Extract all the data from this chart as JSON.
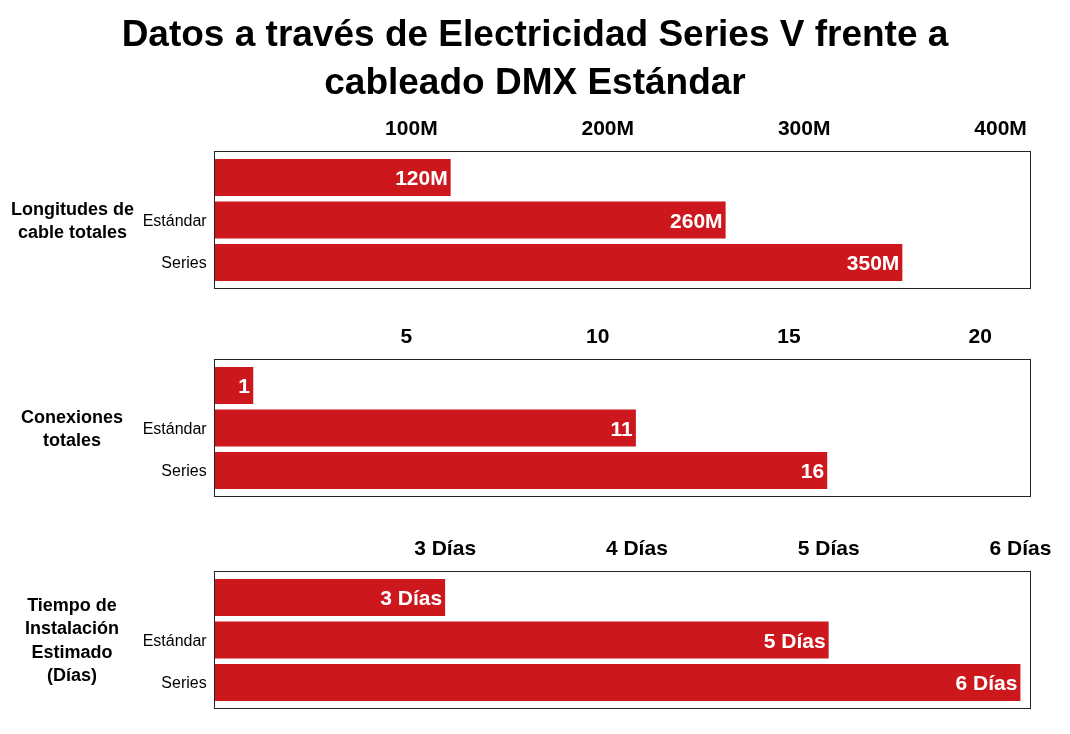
{
  "chart_data": [
    {
      "type": "bar",
      "orientation": "horizontal",
      "title": "Datos a través de Electricidad Series V frente a cableado DMX Estándar",
      "ylabel": "Longitudes de cable totales",
      "categories": [
        null,
        "Estándar",
        "Series"
      ],
      "values": [
        120,
        260,
        350
      ],
      "color": "#cc171c",
      "value_labels": [
        "120M",
        "260M",
        "350M"
      ],
      "xlim": [
        0,
        415
      ],
      "xticks": [
        {
          "value": 100,
          "label": "100M"
        },
        {
          "value": 200,
          "label": "200M"
        },
        {
          "value": 300,
          "label": "300M"
        },
        {
          "value": 400,
          "label": "400M"
        }
      ]
    },
    {
      "type": "bar",
      "orientation": "horizontal",
      "ylabel": "Conexiones totales",
      "categories": [
        null,
        "Estándar",
        "Series"
      ],
      "values": [
        1,
        11,
        16
      ],
      "color": "#cc171c",
      "data_labels": true,
      "xlim": [
        0,
        21.3
      ],
      "xticks": [
        5,
        10,
        15,
        20
      ]
    },
    {
      "type": "bar",
      "orientation": "horizontal",
      "ylabel": "Tiempo de Instalación Estimado (Días)",
      "categories": [
        null,
        "Estándar",
        "Series"
      ],
      "values": [
        3,
        5,
        6
      ],
      "color": "#cc171c",
      "value_labels": [
        "3 Días",
        "5 Días",
        "6 Días"
      ],
      "xlim": [
        1.8,
        6.05
      ],
      "xticks": [
        {
          "value": 3,
          "label": "3 Días"
        },
        {
          "value": 4,
          "label": "4 Días"
        },
        {
          "value": 5,
          "label": "5 Días"
        },
        {
          "value": 6,
          "label": "6 Días"
        }
      ]
    }
  ]
}
